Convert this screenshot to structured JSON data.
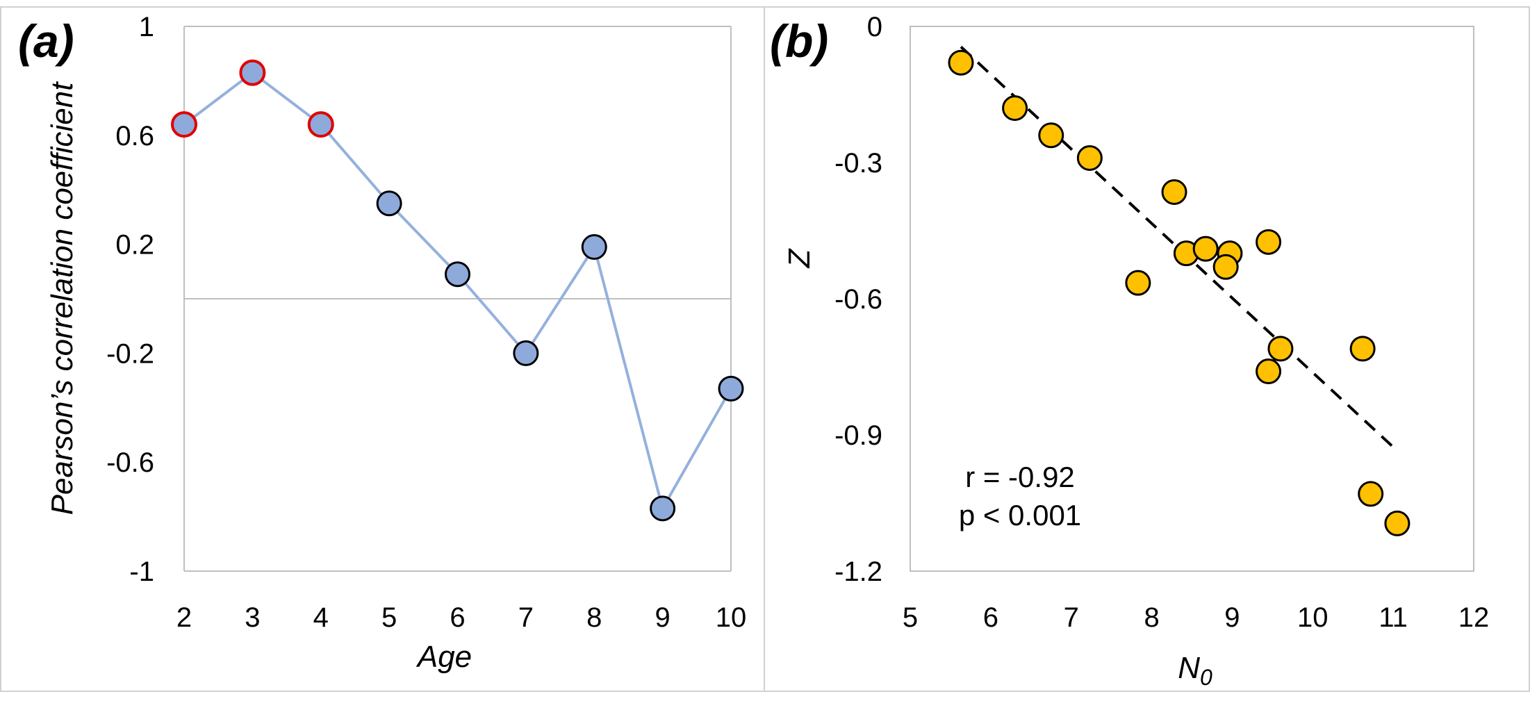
{
  "chart_data": [
    {
      "panel_label": "(a)",
      "type": "line",
      "xlabel": "Age",
      "ylabel": "Pearson’s correlation coefficient",
      "xlim": [
        2,
        10
      ],
      "ylim": [
        -1,
        1
      ],
      "x_ticks": [
        "2",
        "3",
        "4",
        "5",
        "6",
        "7",
        "8",
        "9",
        "10"
      ],
      "y_ticks": [
        "1",
        "0.6",
        "0.2",
        "-0.2",
        "-0.6",
        "-1"
      ],
      "x": [
        2,
        3,
        4,
        5,
        6,
        7,
        8,
        9,
        10
      ],
      "values": [
        0.64,
        0.83,
        0.64,
        0.35,
        0.09,
        -0.2,
        0.19,
        -0.77,
        -0.33
      ],
      "highlighted": [
        true,
        true,
        true,
        false,
        false,
        false,
        false,
        false,
        false
      ],
      "grid": false,
      "zero_line": true,
      "colors": {
        "line": "#95b1dc",
        "marker_fill": "#8eaadb",
        "marker_edge": "#000000",
        "highlight_edge": "#e00000"
      }
    },
    {
      "panel_label": "(b)",
      "type": "scatter",
      "xlabel": "N",
      "xlabel_subscript": "0",
      "ylabel": "Z",
      "xlim": [
        5,
        12
      ],
      "ylim": [
        -1.2,
        0
      ],
      "x_ticks": [
        "5",
        "6",
        "7",
        "8",
        "9",
        "10",
        "11",
        "12"
      ],
      "y_ticks": [
        "0",
        "-0.3",
        "-0.6",
        "-0.9",
        "-1.2"
      ],
      "points": [
        {
          "x": 5.63,
          "y": -0.08
        },
        {
          "x": 6.3,
          "y": -0.18
        },
        {
          "x": 6.75,
          "y": -0.24
        },
        {
          "x": 7.23,
          "y": -0.29
        },
        {
          "x": 8.28,
          "y": -0.365
        },
        {
          "x": 7.83,
          "y": -0.565
        },
        {
          "x": 8.43,
          "y": -0.5
        },
        {
          "x": 8.67,
          "y": -0.49
        },
        {
          "x": 8.97,
          "y": -0.5
        },
        {
          "x": 8.92,
          "y": -0.53
        },
        {
          "x": 9.45,
          "y": -0.475
        },
        {
          "x": 9.6,
          "y": -0.71
        },
        {
          "x": 9.45,
          "y": -0.76
        },
        {
          "x": 10.62,
          "y": -0.71
        },
        {
          "x": 10.72,
          "y": -1.03
        },
        {
          "x": 11.05,
          "y": -1.095
        }
      ],
      "trendline": {
        "x": [
          5.63,
          11.05
        ],
        "y": [
          -0.045,
          -0.935
        ]
      },
      "annotations": [
        "r = -0.92",
        "p < 0.001"
      ],
      "grid": false,
      "colors": {
        "marker_fill": "#ffc000",
        "marker_edge": "#000000",
        "trendline": "#000000"
      }
    }
  ]
}
